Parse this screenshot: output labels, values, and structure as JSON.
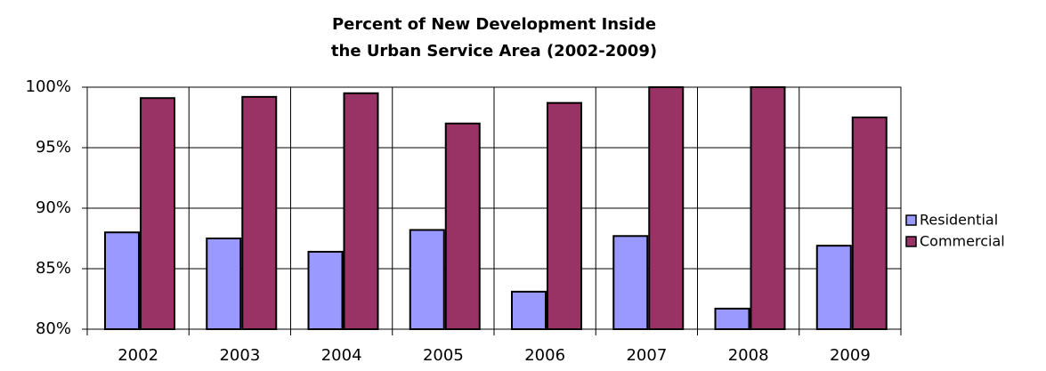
{
  "chart_data": {
    "type": "bar",
    "title": [
      "Percent of New Development Inside",
      "the Urban Service Area (2002-2009)"
    ],
    "categories": [
      "2002",
      "2003",
      "2004",
      "2005",
      "2006",
      "2007",
      "2008",
      "2009"
    ],
    "series": [
      {
        "name": "Residential",
        "color": "#9999ff",
        "values": [
          88.0,
          87.5,
          86.4,
          88.2,
          83.1,
          87.7,
          81.7,
          86.9
        ]
      },
      {
        "name": "Commercial",
        "color": "#993366",
        "values": [
          99.1,
          99.2,
          99.5,
          97.0,
          98.7,
          100,
          100,
          97.5
        ]
      }
    ],
    "ylim": [
      80,
      100
    ],
    "yticks": [
      {
        "value": 80,
        "label": "80%"
      },
      {
        "value": 85,
        "label": "85%"
      },
      {
        "value": 90,
        "label": "90%"
      },
      {
        "value": 95,
        "label": "95%"
      },
      {
        "value": 100,
        "label": "100%"
      }
    ],
    "grid": true,
    "legend": "right"
  }
}
